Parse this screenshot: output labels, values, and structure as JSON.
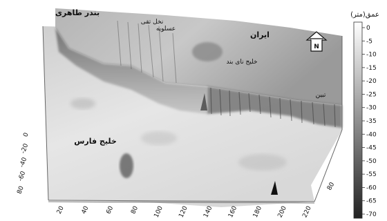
{
  "map": {
    "place_labels": {
      "bandar_taheri": "بندر طاهری",
      "asaluyeh": "عسلویه",
      "nakhl_taghi": "نخل تقی",
      "iran": "ایران",
      "nay_band_bay": "خلیج نای بند",
      "tabin": "تبین",
      "persian_gulf": "خلیج فارس"
    },
    "north_arrow": {
      "letter": "N"
    },
    "x_axis_ticks": [
      "20",
      "40",
      "60",
      "80",
      "100",
      "120",
      "140",
      "160",
      "180",
      "200",
      "220"
    ],
    "y_axis_ticks": [
      "0",
      "-20",
      "-40",
      "-60",
      "80"
    ],
    "right_tick": "80"
  },
  "colorbar": {
    "title": "عمق(متر)",
    "ticks": [
      "0",
      "-5",
      "-10",
      "-15",
      "-20",
      "-25",
      "-30",
      "-35",
      "-40",
      "-45",
      "-50",
      "-55",
      "-60",
      "-65",
      "-70"
    ],
    "color_top": "#ffffff",
    "color_bottom": "#222222"
  }
}
